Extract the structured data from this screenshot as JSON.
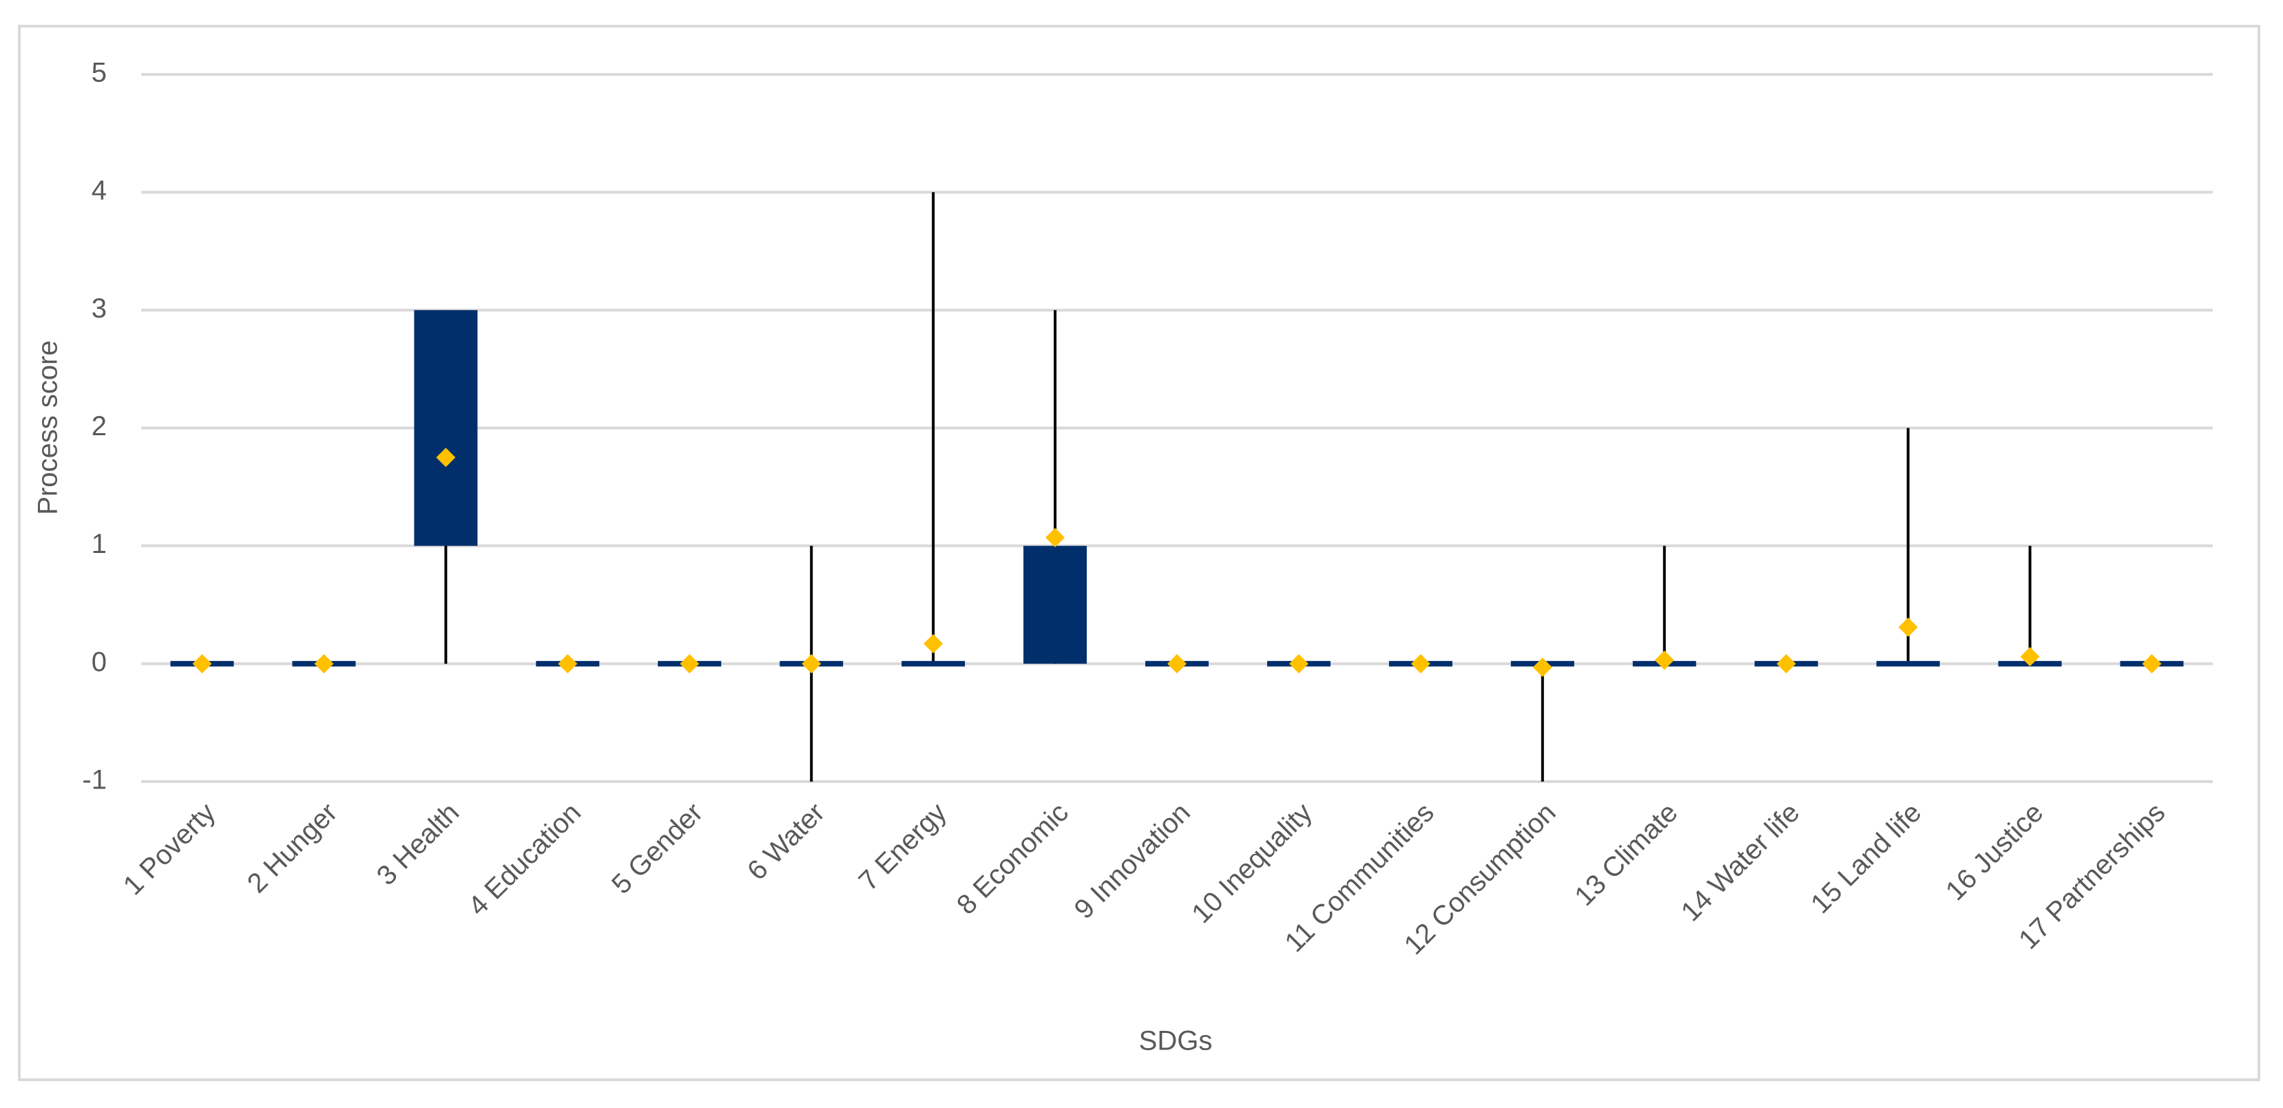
{
  "chart_data": {
    "type": "box",
    "x_label": "SDGs",
    "y_label": "Process score",
    "categories": [
      "1 Poverty",
      "2 Hunger",
      "3 Health",
      "4 Education",
      "5 Gender",
      "6 Water",
      "7 Energy",
      "8 Economic",
      "9 Innovation",
      "10 Inequality",
      "11 Communities",
      "12 Consumption",
      "13 Climate",
      "14 Water life",
      "15 Land life",
      "16 Justice",
      "17 Partnerships"
    ],
    "min": [
      0,
      0,
      0,
      0,
      0,
      -1,
      0,
      0,
      0,
      0,
      0,
      -1,
      0,
      0,
      0,
      0,
      0
    ],
    "q1": [
      0,
      0,
      1,
      0,
      0,
      0,
      0,
      0,
      0,
      0,
      0,
      0,
      0,
      0,
      0,
      0,
      0
    ],
    "q3": [
      0,
      0,
      3,
      0,
      0,
      0,
      0,
      1,
      0,
      0,
      0,
      0,
      0,
      0,
      0,
      0,
      0
    ],
    "max": [
      0,
      0,
      3,
      0,
      0,
      1,
      4,
      3,
      0,
      0,
      0,
      0,
      1,
      0,
      2,
      1,
      0
    ],
    "mean": [
      0,
      0,
      1.75,
      0,
      0,
      0,
      0.17,
      1.07,
      0,
      0,
      0,
      -0.03,
      0.03,
      0,
      0.31,
      0.06,
      0
    ],
    "box_color": "#002f6c",
    "whisker_color": "#000000",
    "mean_color": "#ffc000",
    "ylim": [
      -1,
      5
    ],
    "yticks": [
      -1,
      0,
      1,
      2,
      3,
      4,
      5
    ],
    "grid": true
  }
}
